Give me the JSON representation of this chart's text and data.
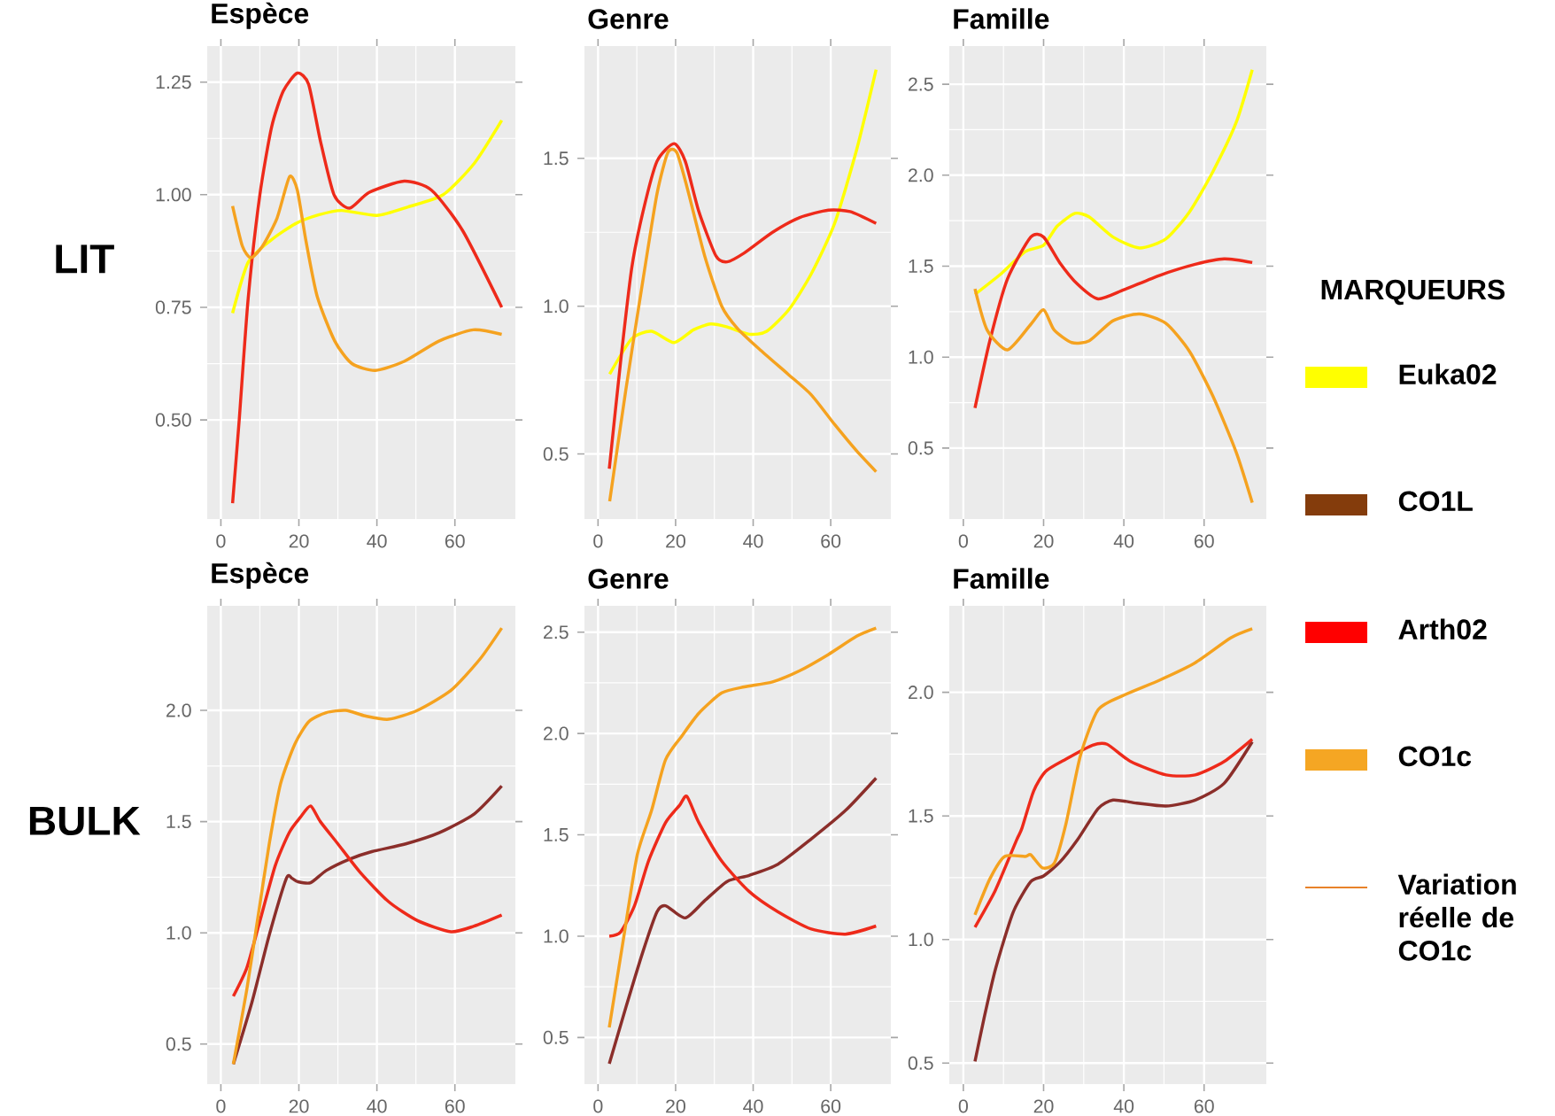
{
  "chart_data": [
    {
      "type": "line",
      "title": "Espèce",
      "ylabel": "LIT",
      "xlim": [
        -3.5,
        75.5
      ],
      "ylim": [
        0.28,
        1.33
      ],
      "xticks": [
        0,
        20,
        40,
        60
      ],
      "yticks": [
        {
          "value": 0.5,
          "label": "0.50"
        },
        {
          "value": 0.75,
          "label": "0.75"
        },
        {
          "value": 1.0,
          "label": "1.00"
        },
        {
          "value": 1.25,
          "label": "1.25"
        }
      ],
      "grid": true,
      "series": [
        {
          "color": "#ffff00",
          "x": [
            3,
            7,
            13,
            19,
            25,
            31,
            40,
            48,
            57,
            65,
            72
          ],
          "values": [
            0.737,
            0.85,
            0.9,
            0.935,
            0.955,
            0.965,
            0.954,
            0.973,
            1.0,
            1.07,
            1.165
          ]
        },
        {
          "color": "#ee2a1a",
          "x": [
            3,
            4.7,
            7,
            10,
            13,
            16,
            19.6,
            22.5,
            25.5,
            29,
            33,
            38,
            47,
            54,
            62,
            72
          ],
          "values": [
            0.315,
            0.5,
            0.77,
            1.0,
            1.15,
            1.23,
            1.27,
            1.245,
            1.12,
            1.0,
            0.97,
            1.005,
            1.03,
            1.01,
            0.92,
            0.75
          ]
        },
        {
          "color": "#f5a21f",
          "x": [
            3,
            5.5,
            7.7,
            10.7,
            14.4,
            17.6,
            19.6,
            21.8,
            24.7,
            29.2,
            33.6,
            39.6,
            47,
            55.9,
            64.7,
            72
          ],
          "values": [
            0.975,
            0.886,
            0.86,
            0.886,
            0.948,
            1.04,
            1.01,
            0.898,
            0.774,
            0.675,
            0.625,
            0.61,
            0.63,
            0.675,
            0.7,
            0.69
          ]
        }
      ]
    },
    {
      "type": "line",
      "title": "Genre",
      "xlim": [
        -3.5,
        75.5
      ],
      "ylim": [
        0.28,
        1.88
      ],
      "xticks": [
        0,
        20,
        40,
        60
      ],
      "yticks": [
        {
          "value": 0.5,
          "label": "0.5"
        },
        {
          "value": 1.0,
          "label": "1.0"
        },
        {
          "value": 1.5,
          "label": "1.5"
        }
      ],
      "grid": true,
      "series": [
        {
          "color": "#ffff00",
          "x": [
            3,
            8.7,
            13.8,
            19.6,
            24.6,
            29,
            33.3,
            39,
            43.5,
            49.3,
            55,
            61,
            66.7,
            71.7
          ],
          "values": [
            0.77,
            0.89,
            0.915,
            0.877,
            0.92,
            0.94,
            0.93,
            0.905,
            0.915,
            0.99,
            1.11,
            1.28,
            1.53,
            1.8
          ]
        },
        {
          "color": "#ee2a1a",
          "x": [
            2.9,
            5.8,
            8.7,
            11.6,
            15.2,
            19.6,
            22.5,
            26,
            30.4,
            33.3,
            37.7,
            45,
            52,
            59.4,
            65,
            71.7
          ],
          "values": [
            0.45,
            0.81,
            1.13,
            1.32,
            1.49,
            1.55,
            1.49,
            1.32,
            1.17,
            1.15,
            1.18,
            1.25,
            1.3,
            1.325,
            1.32,
            1.28
          ]
        },
        {
          "color": "#f5a21f",
          "x": [
            3,
            7.2,
            11.6,
            15.2,
            18,
            20.3,
            23,
            27.5,
            31.9,
            36,
            42,
            49,
            55,
            61,
            66.7,
            71.7
          ],
          "values": [
            0.34,
            0.72,
            1.09,
            1.38,
            1.52,
            1.52,
            1.4,
            1.17,
            1.0,
            0.924,
            0.85,
            0.77,
            0.7,
            0.6,
            0.51,
            0.44
          ]
        }
      ]
    },
    {
      "type": "line",
      "title": "Famille",
      "xlim": [
        -3.5,
        75.5
      ],
      "ylim": [
        0.11,
        2.71
      ],
      "xticks": [
        0,
        20,
        40,
        60
      ],
      "yticks": [
        {
          "value": 0.5,
          "label": "0.5"
        },
        {
          "value": 1.0,
          "label": "1.0"
        },
        {
          "value": 1.5,
          "label": "1.5"
        },
        {
          "value": 2.0,
          "label": "2.0"
        },
        {
          "value": 2.5,
          "label": "2.5"
        }
      ],
      "grid": true,
      "series": [
        {
          "color": "#ffff00",
          "x": [
            2.9,
            9.5,
            15.4,
            20,
            23.4,
            27.8,
            31.4,
            37.3,
            43.9,
            50.5,
            56.4,
            62.2,
            68,
            72
          ],
          "values": [
            1.345,
            1.46,
            1.58,
            1.615,
            1.72,
            1.79,
            1.77,
            1.66,
            1.6,
            1.65,
            1.8,
            2.02,
            2.29,
            2.58
          ]
        },
        {
          "color": "#ee2a1a",
          "x": [
            2.9,
            6.6,
            11,
            16.8,
            20,
            24,
            28.5,
            33.6,
            40,
            49,
            57.8,
            65,
            72
          ],
          "values": [
            0.72,
            1.09,
            1.43,
            1.66,
            1.66,
            1.52,
            1.4,
            1.32,
            1.37,
            1.45,
            1.51,
            1.54,
            1.52
          ]
        },
        {
          "color": "#f5a21f",
          "x": [
            2.9,
            5.9,
            11,
            16.8,
            20,
            22.6,
            27,
            31.4,
            37.3,
            43.9,
            50.5,
            56.4,
            62.2,
            68,
            72
          ],
          "values": [
            1.375,
            1.15,
            1.04,
            1.18,
            1.26,
            1.15,
            1.08,
            1.09,
            1.2,
            1.237,
            1.185,
            1.03,
            0.785,
            0.477,
            0.2
          ]
        }
      ]
    },
    {
      "type": "line",
      "title": "Espèce",
      "ylabel": "BULK",
      "xlim": [
        -3.5,
        75.5
      ],
      "ylim": [
        0.32,
        2.47
      ],
      "xticks": [
        0,
        20,
        40,
        60
      ],
      "yticks": [
        {
          "value": 0.5,
          "label": "0.5"
        },
        {
          "value": 1.0,
          "label": "1.0"
        },
        {
          "value": 1.5,
          "label": "1.5"
        },
        {
          "value": 2.0,
          "label": "2.0"
        }
      ],
      "grid": true,
      "series": [
        {
          "color": "#8b2e2a",
          "x": [
            3.2,
            8,
            12.4,
            16.8,
            18.2,
            19.7,
            23,
            27,
            32.8,
            38.7,
            47.4,
            56,
            65,
            72
          ],
          "values": [
            0.41,
            0.69,
            0.99,
            1.245,
            1.245,
            1.23,
            1.225,
            1.28,
            1.33,
            1.365,
            1.4,
            1.45,
            1.535,
            1.66
          ]
        },
        {
          "color": "#ee2a1a",
          "x": [
            3.2,
            6.6,
            9.5,
            13.9,
            17.5,
            20.4,
            23,
            25.5,
            30,
            35.8,
            43,
            50.4,
            59,
            64.9,
            72
          ],
          "values": [
            0.715,
            0.84,
            1.02,
            1.3,
            1.45,
            1.52,
            1.57,
            1.5,
            1.4,
            1.27,
            1.14,
            1.055,
            1.005,
            1.03,
            1.08
          ]
        },
        {
          "color": "#f5a21f",
          "x": [
            3.2,
            6.6,
            9.5,
            12.4,
            15.3,
            19,
            22.6,
            27,
            32,
            37,
            43,
            50.4,
            59,
            66.4,
            72
          ],
          "values": [
            0.41,
            0.74,
            1.07,
            1.4,
            1.67,
            1.85,
            1.95,
            1.99,
            2.0,
            1.975,
            1.96,
            2.0,
            2.09,
            2.23,
            2.37
          ]
        }
      ]
    },
    {
      "type": "line",
      "title": "Genre",
      "xlim": [
        -3.5,
        75.5
      ],
      "ylim": [
        0.27,
        2.63
      ],
      "xticks": [
        0,
        20,
        40,
        60
      ],
      "yticks": [
        {
          "value": 0.5,
          "label": "0.5"
        },
        {
          "value": 1.0,
          "label": "1.0"
        },
        {
          "value": 1.5,
          "label": "1.5"
        },
        {
          "value": 2.0,
          "label": "2.0"
        },
        {
          "value": 2.5,
          "label": "2.5"
        }
      ],
      "grid": true,
      "series": [
        {
          "color": "#8b2e2a",
          "x": [
            2.9,
            7.2,
            11.6,
            15.2,
            17.4,
            22.5,
            27.5,
            33.3,
            39,
            46.4,
            55,
            63.8,
            71.7
          ],
          "values": [
            0.37,
            0.65,
            0.925,
            1.12,
            1.15,
            1.09,
            1.175,
            1.27,
            1.3,
            1.355,
            1.48,
            1.62,
            1.78
          ]
        },
        {
          "color": "#ee2a1a",
          "x": [
            2.9,
            5.8,
            9.4,
            13,
            17.4,
            21,
            22.9,
            26,
            31.9,
            39,
            46.4,
            55,
            63.8,
            71.7
          ],
          "values": [
            1.0,
            1.02,
            1.15,
            1.37,
            1.56,
            1.645,
            1.69,
            1.56,
            1.37,
            1.22,
            1.12,
            1.035,
            1.01,
            1.05
          ]
        },
        {
          "color": "#f5a21f",
          "x": [
            2.9,
            6.5,
            10.1,
            13.8,
            17.4,
            21.7,
            26,
            31.9,
            37.7,
            45,
            52,
            59.4,
            66.7,
            71.7
          ],
          "values": [
            0.55,
            0.98,
            1.4,
            1.62,
            1.87,
            1.99,
            2.1,
            2.2,
            2.23,
            2.255,
            2.31,
            2.39,
            2.48,
            2.52
          ]
        }
      ]
    },
    {
      "type": "line",
      "title": "Famille",
      "xlim": [
        -3.5,
        75.5
      ],
      "ylim": [
        0.415,
        2.35
      ],
      "xticks": [
        0,
        20,
        40,
        60
      ],
      "yticks": [
        {
          "value": 0.5,
          "label": "0.5"
        },
        {
          "value": 1.0,
          "label": "1.0"
        },
        {
          "value": 1.5,
          "label": "1.5"
        },
        {
          "value": 2.0,
          "label": "2.0"
        }
      ],
      "grid": true,
      "series": [
        {
          "color": "#8b2e2a",
          "x": [
            2.9,
            5.1,
            8,
            12.4,
            16.8,
            20,
            24.1,
            28.5,
            33.6,
            37.3,
            43.2,
            50.5,
            57.8,
            65,
            72
          ],
          "values": [
            0.507,
            0.677,
            0.88,
            1.11,
            1.234,
            1.257,
            1.314,
            1.405,
            1.53,
            1.564,
            1.552,
            1.54,
            1.564,
            1.632,
            1.8
          ]
        },
        {
          "color": "#ee2a1a",
          "x": [
            2.9,
            8,
            13.2,
            14.6,
            17.5,
            20.5,
            25.6,
            32.2,
            35.8,
            41.7,
            50.5,
            57.8,
            65,
            72
          ],
          "values": [
            1.05,
            1.2,
            1.4,
            1.45,
            1.6,
            1.68,
            1.73,
            1.786,
            1.79,
            1.72,
            1.666,
            1.666,
            1.72,
            1.81
          ]
        },
        {
          "color": "#f5a21f",
          "x": [
            2.9,
            6.6,
            10.3,
            15.4,
            16.8,
            19.7,
            22.7,
            25.6,
            29.2,
            33.6,
            40.2,
            49,
            57.8,
            66.6,
            72
          ],
          "values": [
            1.1,
            1.245,
            1.336,
            1.336,
            1.343,
            1.29,
            1.31,
            1.47,
            1.745,
            1.93,
            1.99,
            2.05,
            2.12,
            2.22,
            2.257
          ]
        }
      ]
    },
    {
      "type": "other",
      "legend_title": "MARQUEURS",
      "series": [
        {
          "name": "Euka02",
          "color": "#ffff00"
        },
        {
          "name": "CO1L",
          "color": "#843c0c"
        },
        {
          "name": "Arth02",
          "color": "#ff0000"
        },
        {
          "name": "CO1c",
          "color": "#f5a623"
        },
        {
          "name": "Variation réelle de CO1c",
          "color": "#e8822a",
          "type": "line"
        }
      ]
    }
  ]
}
